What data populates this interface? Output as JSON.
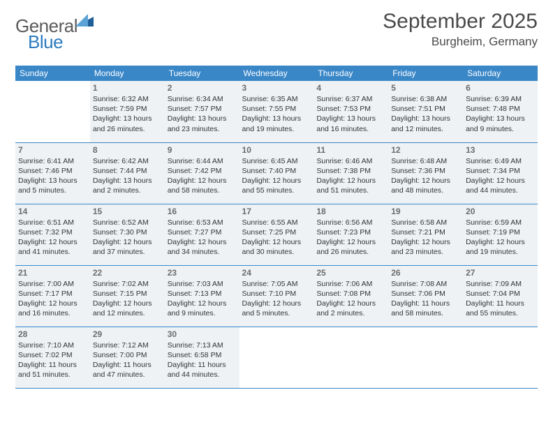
{
  "logo": {
    "text_general": "General",
    "text_blue": "Blue",
    "icon_color_dark": "#1f5f99",
    "icon_color_light": "#5ba3d6"
  },
  "title": "September 2025",
  "location": "Burgheim, Germany",
  "header_bg": "#3a87c8",
  "cell_bg": "#eef2f5",
  "border_color": "#3a87c8",
  "day_headers": [
    "Sunday",
    "Monday",
    "Tuesday",
    "Wednesday",
    "Thursday",
    "Friday",
    "Saturday"
  ],
  "weeks": [
    [
      null,
      {
        "n": "1",
        "sr": "6:32 AM",
        "ss": "7:59 PM",
        "dl": "13 hours and 26 minutes."
      },
      {
        "n": "2",
        "sr": "6:34 AM",
        "ss": "7:57 PM",
        "dl": "13 hours and 23 minutes."
      },
      {
        "n": "3",
        "sr": "6:35 AM",
        "ss": "7:55 PM",
        "dl": "13 hours and 19 minutes."
      },
      {
        "n": "4",
        "sr": "6:37 AM",
        "ss": "7:53 PM",
        "dl": "13 hours and 16 minutes."
      },
      {
        "n": "5",
        "sr": "6:38 AM",
        "ss": "7:51 PM",
        "dl": "13 hours and 12 minutes."
      },
      {
        "n": "6",
        "sr": "6:39 AM",
        "ss": "7:48 PM",
        "dl": "13 hours and 9 minutes."
      }
    ],
    [
      {
        "n": "7",
        "sr": "6:41 AM",
        "ss": "7:46 PM",
        "dl": "13 hours and 5 minutes."
      },
      {
        "n": "8",
        "sr": "6:42 AM",
        "ss": "7:44 PM",
        "dl": "13 hours and 2 minutes."
      },
      {
        "n": "9",
        "sr": "6:44 AM",
        "ss": "7:42 PM",
        "dl": "12 hours and 58 minutes."
      },
      {
        "n": "10",
        "sr": "6:45 AM",
        "ss": "7:40 PM",
        "dl": "12 hours and 55 minutes."
      },
      {
        "n": "11",
        "sr": "6:46 AM",
        "ss": "7:38 PM",
        "dl": "12 hours and 51 minutes."
      },
      {
        "n": "12",
        "sr": "6:48 AM",
        "ss": "7:36 PM",
        "dl": "12 hours and 48 minutes."
      },
      {
        "n": "13",
        "sr": "6:49 AM",
        "ss": "7:34 PM",
        "dl": "12 hours and 44 minutes."
      }
    ],
    [
      {
        "n": "14",
        "sr": "6:51 AM",
        "ss": "7:32 PM",
        "dl": "12 hours and 41 minutes."
      },
      {
        "n": "15",
        "sr": "6:52 AM",
        "ss": "7:30 PM",
        "dl": "12 hours and 37 minutes."
      },
      {
        "n": "16",
        "sr": "6:53 AM",
        "ss": "7:27 PM",
        "dl": "12 hours and 34 minutes."
      },
      {
        "n": "17",
        "sr": "6:55 AM",
        "ss": "7:25 PM",
        "dl": "12 hours and 30 minutes."
      },
      {
        "n": "18",
        "sr": "6:56 AM",
        "ss": "7:23 PM",
        "dl": "12 hours and 26 minutes."
      },
      {
        "n": "19",
        "sr": "6:58 AM",
        "ss": "7:21 PM",
        "dl": "12 hours and 23 minutes."
      },
      {
        "n": "20",
        "sr": "6:59 AM",
        "ss": "7:19 PM",
        "dl": "12 hours and 19 minutes."
      }
    ],
    [
      {
        "n": "21",
        "sr": "7:00 AM",
        "ss": "7:17 PM",
        "dl": "12 hours and 16 minutes."
      },
      {
        "n": "22",
        "sr": "7:02 AM",
        "ss": "7:15 PM",
        "dl": "12 hours and 12 minutes."
      },
      {
        "n": "23",
        "sr": "7:03 AM",
        "ss": "7:13 PM",
        "dl": "12 hours and 9 minutes."
      },
      {
        "n": "24",
        "sr": "7:05 AM",
        "ss": "7:10 PM",
        "dl": "12 hours and 5 minutes."
      },
      {
        "n": "25",
        "sr": "7:06 AM",
        "ss": "7:08 PM",
        "dl": "12 hours and 2 minutes."
      },
      {
        "n": "26",
        "sr": "7:08 AM",
        "ss": "7:06 PM",
        "dl": "11 hours and 58 minutes."
      },
      {
        "n": "27",
        "sr": "7:09 AM",
        "ss": "7:04 PM",
        "dl": "11 hours and 55 minutes."
      }
    ],
    [
      {
        "n": "28",
        "sr": "7:10 AM",
        "ss": "7:02 PM",
        "dl": "11 hours and 51 minutes."
      },
      {
        "n": "29",
        "sr": "7:12 AM",
        "ss": "7:00 PM",
        "dl": "11 hours and 47 minutes."
      },
      {
        "n": "30",
        "sr": "7:13 AM",
        "ss": "6:58 PM",
        "dl": "11 hours and 44 minutes."
      },
      null,
      null,
      null,
      null
    ]
  ],
  "labels": {
    "sunrise": "Sunrise:",
    "sunset": "Sunset:",
    "daylight": "Daylight:"
  }
}
